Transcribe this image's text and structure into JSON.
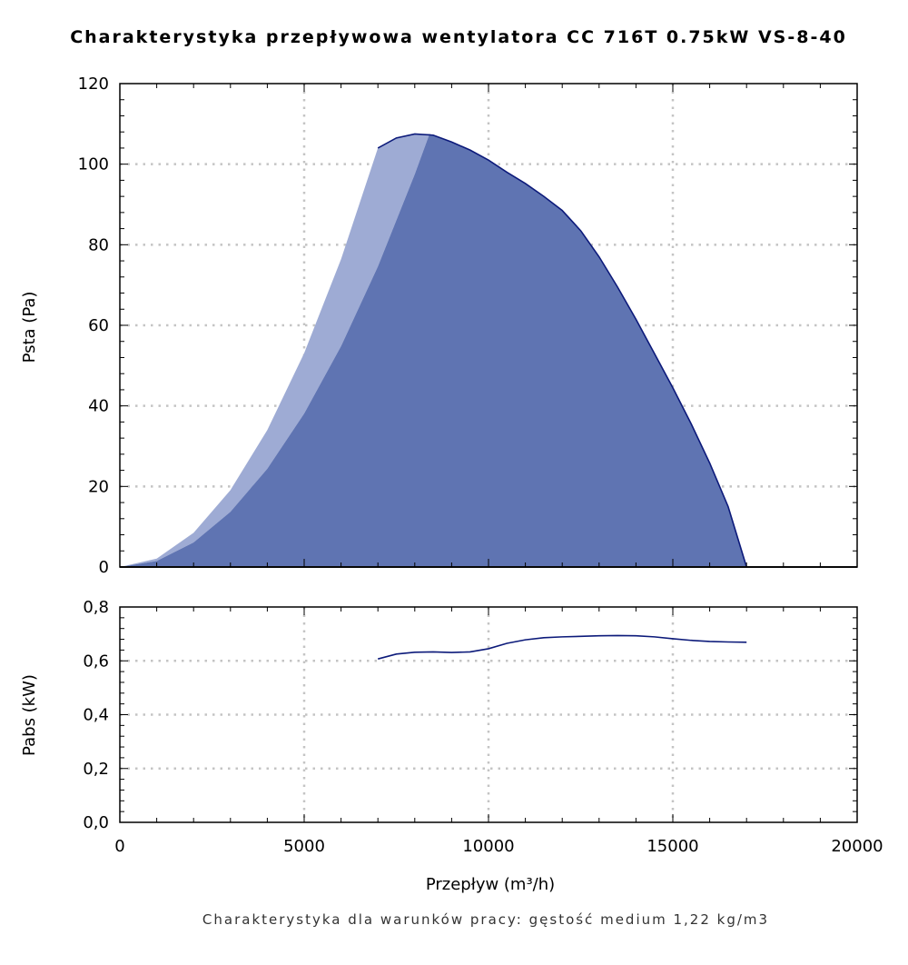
{
  "title": "Charakterystyka przepływowa wentylatora CC 716T 0.75kW VS-8-40",
  "caption": "Charakterystyka dla warunków pracy: gęstość medium 1,22 kg/m3",
  "colors": {
    "fill_dark": "#5f74b2",
    "fill_light": "#9eabd4",
    "line": "#0c1a7a",
    "grid": "#c4c4c4"
  },
  "chart_data": [
    {
      "type": "area",
      "title": "Charakterystyka przepływowa wentylatora CC 716T 0.75kW VS-8-40",
      "xlabel": "Przepływ (m³/h)",
      "ylabel": "Psta (Pa)",
      "xlim": [
        0,
        20000
      ],
      "ylim": [
        0,
        120
      ],
      "x_ticks": [
        0,
        5000,
        10000,
        15000,
        20000
      ],
      "y_ticks": [
        0,
        20,
        40,
        60,
        80,
        100,
        120
      ],
      "y_tick_labels": [
        "0",
        "20",
        "40",
        "60",
        "80",
        "100",
        "120"
      ],
      "grid": true,
      "series": [
        {
          "name": "fan curve",
          "x": [
            7000,
            7500,
            8000,
            8500,
            9000,
            9500,
            10000,
            10500,
            11000,
            11500,
            12000,
            12500,
            13000,
            13500,
            14000,
            14500,
            15000,
            15500,
            16000,
            16500,
            17000
          ],
          "y": [
            104,
            106.5,
            107.5,
            107.2,
            105.5,
            103.5,
            101,
            98,
            95.2,
            92,
            88.5,
            83.5,
            77,
            69.5,
            61.5,
            53,
            44.5,
            35.5,
            25.8,
            15,
            0
          ]
        },
        {
          "name": "system parabola (left)",
          "x": [
            0,
            1000,
            2000,
            3000,
            4000,
            5000,
            6000,
            7000
          ],
          "y": [
            0,
            2.1,
            8.5,
            19.1,
            34,
            53.1,
            76.4,
            104
          ]
        },
        {
          "name": "system parabola (right)",
          "x": [
            0,
            1000,
            2000,
            3000,
            4000,
            5000,
            6000,
            7000,
            8000,
            8400
          ],
          "y": [
            0,
            1.5,
            6.1,
            13.7,
            24.4,
            38.1,
            54.8,
            74.6,
            97.5,
            107.5
          ]
        },
        {
          "name": "zero line",
          "x": [
            0,
            20000
          ],
          "y": [
            0,
            0
          ]
        }
      ]
    },
    {
      "type": "line",
      "xlabel": "Przepływ (m³/h)",
      "ylabel": "Pabs (kW)",
      "xlim": [
        0,
        20000
      ],
      "ylim": [
        0,
        0.8
      ],
      "x_ticks": [
        0,
        5000,
        10000,
        15000,
        20000
      ],
      "x_tick_labels": [
        "0",
        "5000",
        "10000",
        "15000",
        "20000"
      ],
      "y_ticks": [
        0,
        0.2,
        0.4,
        0.6,
        0.8
      ],
      "y_tick_labels": [
        "0,0",
        "0,2",
        "0,4",
        "0,6",
        "0,8"
      ],
      "grid": true,
      "series": [
        {
          "name": "Pabs",
          "x": [
            7000,
            7500,
            8000,
            8500,
            9000,
            9500,
            10000,
            10500,
            11000,
            11500,
            12000,
            12500,
            13000,
            13500,
            14000,
            14500,
            15000,
            15500,
            16000,
            16500,
            17000
          ],
          "y": [
            0.607,
            0.625,
            0.632,
            0.633,
            0.631,
            0.633,
            0.645,
            0.665,
            0.678,
            0.686,
            0.689,
            0.691,
            0.693,
            0.694,
            0.693,
            0.689,
            0.682,
            0.676,
            0.672,
            0.67,
            0.669
          ]
        }
      ]
    }
  ]
}
